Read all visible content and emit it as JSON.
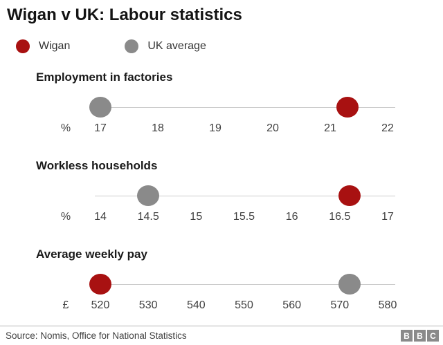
{
  "page": {
    "title": "Wigan v UK: Labour statistics"
  },
  "legend": [
    {
      "label": "Wigan",
      "color": "#a81111"
    },
    {
      "label": "UK average",
      "color": "#8a8a8a"
    }
  ],
  "colors": {
    "wigan_red": "#a81111",
    "uk_grey": "#8a8a8a",
    "axis_line": "#cccccc"
  },
  "chart_data": [
    {
      "type": "scatter",
      "title": "Employment in factories",
      "unit": "%",
      "ticks": [
        17,
        18,
        19,
        20,
        21,
        22
      ],
      "xlim": [
        17,
        22
      ],
      "series": [
        {
          "name": "UK average",
          "value": 17,
          "color_key": "uk_grey"
        },
        {
          "name": "Wigan",
          "value": 21.3,
          "color_key": "wigan_red"
        }
      ]
    },
    {
      "type": "scatter",
      "title": "Workless households",
      "unit": "%",
      "ticks": [
        14,
        14.5,
        15,
        15.5,
        16,
        16.5,
        17
      ],
      "xlim": [
        14,
        17
      ],
      "series": [
        {
          "name": "UK average",
          "value": 14.5,
          "color_key": "uk_grey"
        },
        {
          "name": "Wigan",
          "value": 16.6,
          "color_key": "wigan_red"
        }
      ]
    },
    {
      "type": "scatter",
      "title": "Average weekly pay",
      "unit": "£",
      "ticks": [
        520,
        530,
        540,
        550,
        560,
        570,
        580
      ],
      "xlim": [
        520,
        580
      ],
      "series": [
        {
          "name": "Wigan",
          "value": 520,
          "color_key": "wigan_red"
        },
        {
          "name": "UK average",
          "value": 572,
          "color_key": "uk_grey"
        }
      ]
    }
  ],
  "footer": {
    "source": "Source: Nomis, Office for National Statistics",
    "logo_letters": [
      "B",
      "B",
      "C"
    ]
  }
}
